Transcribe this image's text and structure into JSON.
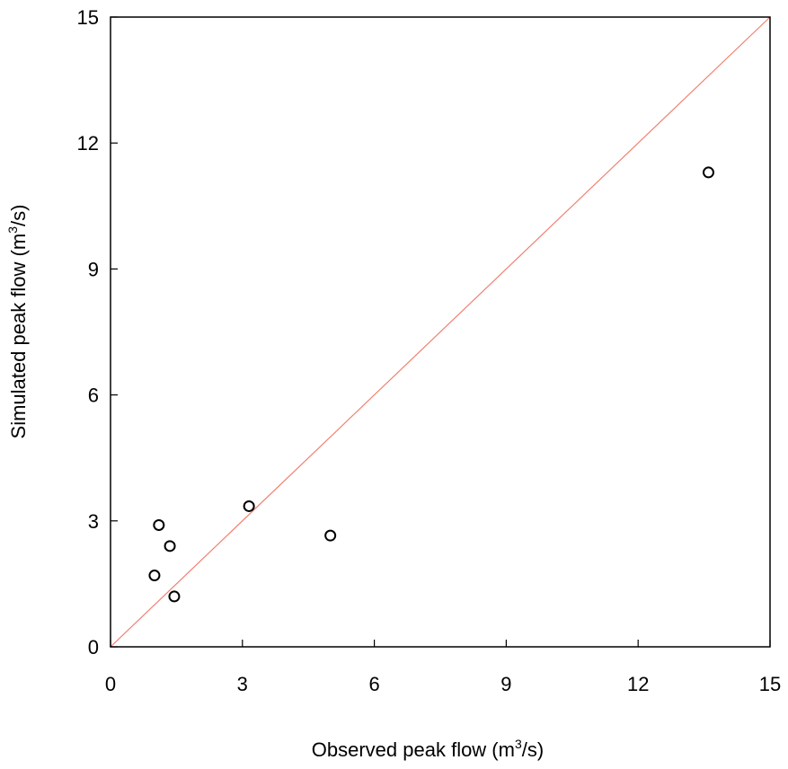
{
  "chart_data": {
    "type": "scatter",
    "title": "",
    "xlabel": {
      "text": "Observed peak flow  (m",
      "sup": "3",
      "suffix": "/s)"
    },
    "ylabel": {
      "text": "Simulated peak flow (m",
      "sup": "3",
      "suffix": "/s)"
    },
    "xlim": [
      0,
      15
    ],
    "ylim": [
      0,
      15
    ],
    "xticks": [
      0,
      3,
      6,
      9,
      12,
      15
    ],
    "yticks": [
      0,
      3,
      6,
      9,
      12,
      15
    ],
    "grid": false,
    "series": [
      {
        "marker": "open-circle",
        "color": "#000000",
        "points": [
          {
            "x": 1.0,
            "y": 1.7
          },
          {
            "x": 1.1,
            "y": 2.9
          },
          {
            "x": 1.35,
            "y": 2.4
          },
          {
            "x": 1.45,
            "y": 1.2
          },
          {
            "x": 3.15,
            "y": 3.35
          },
          {
            "x": 5.0,
            "y": 2.65
          },
          {
            "x": 13.6,
            "y": 11.3
          }
        ]
      }
    ],
    "reference_line": {
      "from": [
        0,
        0
      ],
      "to": [
        15,
        15
      ],
      "color": "#f08070"
    }
  }
}
